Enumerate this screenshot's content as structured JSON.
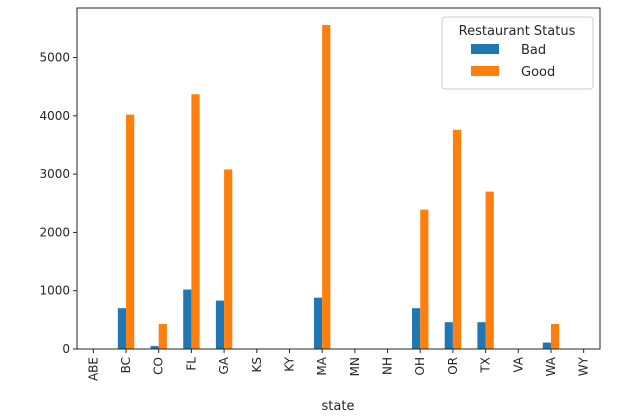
{
  "chart_data": {
    "type": "bar",
    "categories": [
      "ABE",
      "BC",
      "CO",
      "FL",
      "GA",
      "KS",
      "KY",
      "MA",
      "MN",
      "NH",
      "OH",
      "OR",
      "TX",
      "VA",
      "WA",
      "WY"
    ],
    "series": [
      {
        "name": "Bad",
        "color": "#1f77b4",
        "values": [
          0,
          700,
          50,
          1020,
          830,
          0,
          0,
          880,
          0,
          0,
          700,
          460,
          460,
          0,
          110,
          0
        ]
      },
      {
        "name": "Good",
        "color": "#ff7f0e",
        "values": [
          0,
          4020,
          430,
          4370,
          3080,
          0,
          0,
          5560,
          0,
          0,
          2390,
          3760,
          2700,
          0,
          430,
          0
        ]
      }
    ],
    "xlabel": "state",
    "ylabel": "",
    "ylim": [
      0,
      5850
    ],
    "yticks": [
      0,
      1000,
      2000,
      3000,
      4000,
      5000
    ],
    "legend": {
      "title": "Restaurant Status",
      "placement": "top-right"
    },
    "grid": false
  }
}
